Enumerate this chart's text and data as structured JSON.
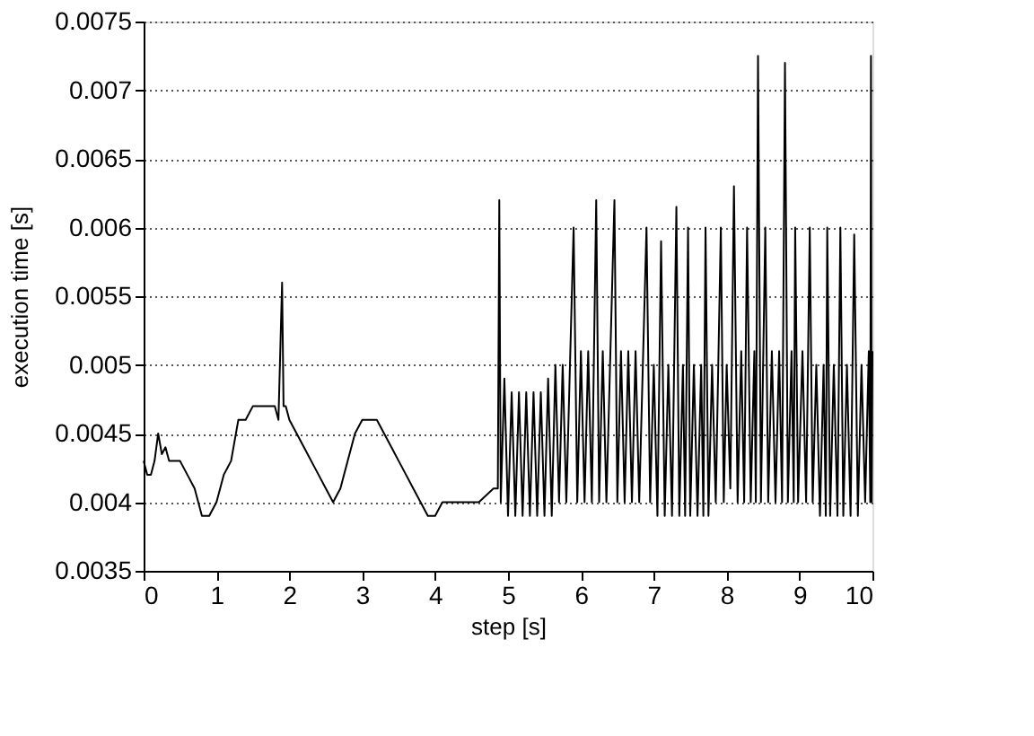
{
  "chart_data": {
    "type": "line",
    "xlabel": "step [s]",
    "ylabel": "execution time  [s]",
    "xlim": [
      0,
      10
    ],
    "xticks": [
      0,
      1,
      2,
      3,
      4,
      5,
      6,
      7,
      8,
      9,
      10
    ],
    "ylim": [
      0.0035,
      0.0075
    ],
    "yticks": [
      0.0035,
      0.004,
      0.0045,
      0.005,
      0.0055,
      0.006,
      0.0065,
      0.007,
      0.0075
    ],
    "grid": "y",
    "marker": "none",
    "line_style": "solid",
    "series": [
      {
        "color": "#000000",
        "x": [
          0,
          0.05,
          0.1,
          0.15,
          0.2,
          0.25,
          0.3,
          0.35,
          0.4,
          0.5,
          0.6,
          0.7,
          0.8,
          0.9,
          1.0,
          1.1,
          1.2,
          1.3,
          1.4,
          1.5,
          1.6,
          1.7,
          1.8,
          1.85,
          1.9,
          1.92,
          1.95,
          2.0,
          2.1,
          2.2,
          2.3,
          2.4,
          2.5,
          2.6,
          2.7,
          2.8,
          2.9,
          3.0,
          3.1,
          3.2,
          3.3,
          3.4,
          3.5,
          3.6,
          3.7,
          3.8,
          3.9,
          4.0,
          4.1,
          4.2,
          4.4,
          4.6,
          4.8,
          4.86,
          4.88,
          4.9,
          4.95,
          5.0,
          5.05,
          5.1,
          5.15,
          5.2,
          5.25,
          5.3,
          5.35,
          5.4,
          5.45,
          5.5,
          5.55,
          5.6,
          5.65,
          5.7,
          5.75,
          5.8,
          5.9,
          5.95,
          6.0,
          6.05,
          6.1,
          6.15,
          6.21,
          6.25,
          6.3,
          6.35,
          6.46,
          6.5,
          6.55,
          6.6,
          6.65,
          6.7,
          6.75,
          6.8,
          6.9,
          6.95,
          7.0,
          7.05,
          7.1,
          7.15,
          7.2,
          7.25,
          7.31,
          7.35,
          7.4,
          7.43,
          7.47,
          7.5,
          7.55,
          7.6,
          7.65,
          7.68,
          7.71,
          7.75,
          7.8,
          7.85,
          7.92,
          7.96,
          8.0,
          8.05,
          8.1,
          8.15,
          8.2,
          8.24,
          8.28,
          8.33,
          8.38,
          8.4,
          8.43,
          8.47,
          8.53,
          8.57,
          8.62,
          8.67,
          8.72,
          8.76,
          8.8,
          8.84,
          8.89,
          8.92,
          8.94,
          8.98,
          9.04,
          9.09,
          9.14,
          9.18,
          9.23,
          9.28,
          9.33,
          9.36,
          9.38,
          9.42,
          9.47,
          9.52,
          9.56,
          9.6,
          9.65,
          9.7,
          9.75,
          9.8,
          9.85,
          9.9,
          9.95,
          9.97,
          9.98,
          9.99,
          10.0
        ],
        "values": [
          0.0043,
          0.0042,
          0.0042,
          0.0043,
          0.0045,
          0.00435,
          0.0044,
          0.0043,
          0.0043,
          0.0043,
          0.0042,
          0.0041,
          0.0039,
          0.0039,
          0.004,
          0.0042,
          0.0043,
          0.0046,
          0.0046,
          0.0047,
          0.0047,
          0.0047,
          0.0047,
          0.0046,
          0.0056,
          0.0047,
          0.0047,
          0.0046,
          0.0045,
          0.0044,
          0.0043,
          0.0042,
          0.0041,
          0.004,
          0.0041,
          0.0043,
          0.0045,
          0.0046,
          0.0046,
          0.0046,
          0.0045,
          0.0044,
          0.0043,
          0.0042,
          0.0041,
          0.004,
          0.0039,
          0.0039,
          0.004,
          0.004,
          0.004,
          0.004,
          0.0041,
          0.0041,
          0.0062,
          0.004,
          0.0049,
          0.0039,
          0.0048,
          0.0039,
          0.0048,
          0.0039,
          0.0048,
          0.0039,
          0.0048,
          0.0039,
          0.0048,
          0.0039,
          0.0049,
          0.0039,
          0.005,
          0.004,
          0.005,
          0.004,
          0.006,
          0.004,
          0.0051,
          0.004,
          0.0051,
          0.004,
          0.0062,
          0.004,
          0.0051,
          0.004,
          0.0062,
          0.004,
          0.0051,
          0.004,
          0.0051,
          0.004,
          0.0051,
          0.004,
          0.006,
          0.004,
          0.005,
          0.0039,
          0.0059,
          0.0039,
          0.005,
          0.0039,
          0.00615,
          0.0039,
          0.005,
          0.0039,
          0.006,
          0.0039,
          0.005,
          0.0039,
          0.005,
          0.0039,
          0.006,
          0.0039,
          0.005,
          0.004,
          0.006,
          0.004,
          0.005,
          0.0041,
          0.0063,
          0.004,
          0.0051,
          0.004,
          0.006,
          0.004,
          0.0051,
          0.004,
          0.00725,
          0.004,
          0.006,
          0.004,
          0.0051,
          0.004,
          0.0051,
          0.004,
          0.0072,
          0.004,
          0.0051,
          0.004,
          0.006,
          0.004,
          0.0051,
          0.004,
          0.006,
          0.004,
          0.005,
          0.0039,
          0.005,
          0.0039,
          0.006,
          0.0039,
          0.005,
          0.0039,
          0.006,
          0.0039,
          0.005,
          0.0039,
          0.00595,
          0.0039,
          0.005,
          0.004,
          0.0051,
          0.004,
          0.00725,
          0.004,
          0.0051
        ]
      }
    ]
  }
}
